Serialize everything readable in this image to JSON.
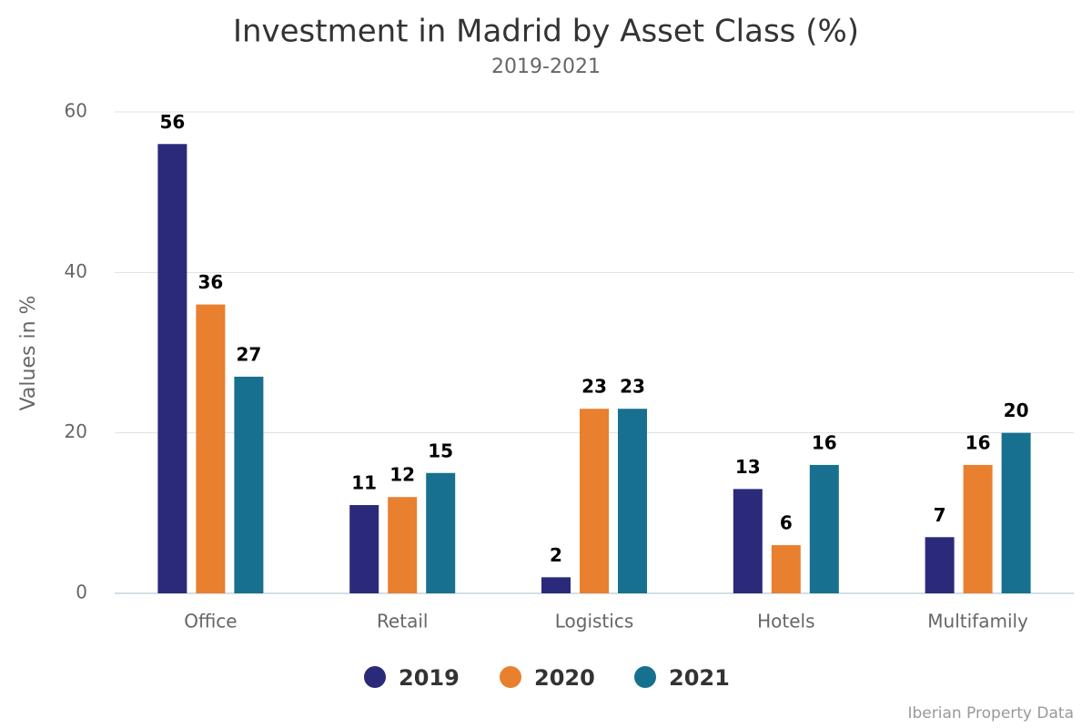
{
  "chart_data": {
    "type": "bar",
    "title": "Investment in Madrid by Asset Class (%)",
    "subtitle": "2019-2021",
    "y_label": "Values in %",
    "source": "Iberian Property Data",
    "categories": [
      "Office",
      "Retail",
      "Logistics",
      "Hotels",
      "Multifamily"
    ],
    "series": [
      {
        "name": "2019",
        "color": "#2b2a7a",
        "values": [
          56,
          11,
          2,
          13,
          7
        ]
      },
      {
        "name": "2020",
        "color": "#e8802f",
        "values": [
          36,
          12,
          23,
          6,
          16
        ]
      },
      {
        "name": "2021",
        "color": "#17708f",
        "values": [
          27,
          15,
          23,
          16,
          20
        ]
      }
    ],
    "ylim": [
      0,
      60
    ],
    "yticks": [
      0,
      20,
      40,
      60
    ],
    "grid": true,
    "legend": "bottom"
  }
}
